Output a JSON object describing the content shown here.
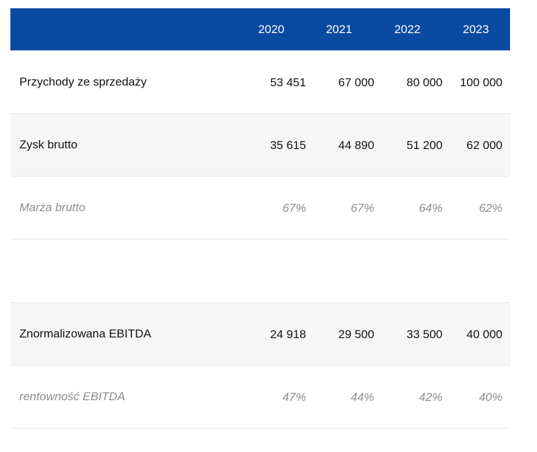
{
  "table": {
    "header": {
      "label": "",
      "years": [
        "2020",
        "2021",
        "2022",
        "2023"
      ]
    },
    "rows": [
      {
        "label": "Przychody ze sprzedaży",
        "values": [
          "53 451",
          "67 000",
          "80 000",
          "100 000"
        ],
        "style": "normal"
      },
      {
        "label": "Zysk brutto",
        "values": [
          "35 615",
          "44 890",
          "51 200",
          "62 000"
        ],
        "style": "normal"
      },
      {
        "label": "Marża brutto",
        "values": [
          "67%",
          "67%",
          "64%",
          "62%"
        ],
        "style": "italic"
      },
      {
        "label": "",
        "values": [
          "",
          "",
          "",
          ""
        ],
        "style": "blank"
      },
      {
        "label": "Znormalizowana EBITDA",
        "values": [
          "24 918",
          "29 500",
          "33 500",
          "40 000"
        ],
        "style": "normal"
      },
      {
        "label": "rentowność EBITDA",
        "values": [
          "47%",
          "44%",
          "42%",
          "40%"
        ],
        "style": "italic"
      }
    ]
  },
  "colors": {
    "header_background": "#0a4aa0",
    "header_text": "#ffffff",
    "shaded_row": "#f6f6f6",
    "italic_text": "#8c8c8c"
  }
}
